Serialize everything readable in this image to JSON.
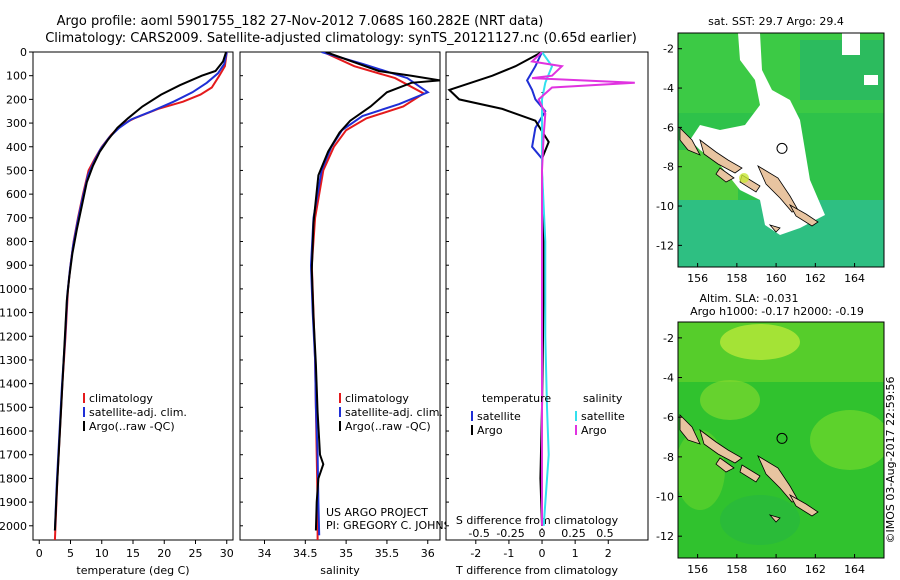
{
  "header": {
    "title_line1": "Argo profile: aoml 5901755_182 27-Nov-2012 7.068S 160.282E (NRT data)",
    "title_line2": "Climatology: CARS2009. Satellite-adjusted climatology: synTS_20121127.nc (0.65d earlier)"
  },
  "colors": {
    "climatology": "#e41a1c",
    "satellite": "#1f2fd6",
    "argo": "#000000",
    "satellite_salinity": "#33e0ee",
    "argo_salinity": "#e033e0"
  },
  "chart_data": [
    {
      "id": "temperature",
      "type": "line",
      "xlabel": "temperature (deg C)",
      "ylabel": "",
      "xlim": [
        -1,
        31
      ],
      "ylim": [
        2060,
        0
      ],
      "xticks": [
        0,
        5,
        10,
        15,
        20,
        25,
        30
      ],
      "yticks": [
        0,
        100,
        200,
        300,
        400,
        500,
        600,
        700,
        800,
        900,
        1000,
        1100,
        1200,
        1300,
        1400,
        1500,
        1600,
        1700,
        1800,
        1900,
        2000
      ],
      "legend": [
        "climatology",
        "satellite-adj. clim.",
        "Argo(..raw -QC)"
      ],
      "series": [
        {
          "name": "climatology",
          "color_key": "climatology",
          "points": [
            [
              30,
              0
            ],
            [
              29.7,
              60
            ],
            [
              28.8,
              100
            ],
            [
              27.6,
              150
            ],
            [
              25.8,
              180
            ],
            [
              23,
              210
            ],
            [
              19,
              240
            ],
            [
              15.2,
              280
            ],
            [
              13,
              310
            ],
            [
              11.5,
              350
            ],
            [
              10,
              400
            ],
            [
              8.9,
              450
            ],
            [
              7.9,
              500
            ],
            [
              7,
              600
            ],
            [
              6.2,
              700
            ],
            [
              5.5,
              800
            ],
            [
              5,
              900
            ],
            [
              4.6,
              1000
            ],
            [
              4.2,
              1200
            ],
            [
              3.7,
              1400
            ],
            [
              3.3,
              1600
            ],
            [
              2.9,
              1800
            ],
            [
              2.6,
              2000
            ],
            [
              2.5,
              2060
            ]
          ]
        },
        {
          "name": "satellite-adj. clim.",
          "color_key": "satellite",
          "points": [
            [
              30,
              0
            ],
            [
              29.6,
              50
            ],
            [
              28.6,
              90
            ],
            [
              26.8,
              130
            ],
            [
              24.5,
              170
            ],
            [
              21.5,
              210
            ],
            [
              18,
              250
            ],
            [
              14.7,
              285
            ],
            [
              12.8,
              320
            ],
            [
              11.2,
              360
            ],
            [
              9.8,
              410
            ],
            [
              8.8,
              460
            ],
            [
              7.8,
              520
            ],
            [
              6.9,
              620
            ],
            [
              6.1,
              720
            ],
            [
              5.4,
              820
            ],
            [
              4.9,
              920
            ],
            [
              4.5,
              1020
            ],
            [
              4.1,
              1220
            ],
            [
              3.6,
              1420
            ],
            [
              3.2,
              1620
            ],
            [
              2.8,
              1820
            ],
            [
              2.5,
              2020
            ]
          ]
        },
        {
          "name": "Argo(..raw -QC)",
          "color_key": "argo",
          "points": [
            [
              29.9,
              0
            ],
            [
              29.4,
              40
            ],
            [
              28.2,
              80
            ],
            [
              26,
              100
            ],
            [
              22.5,
              140
            ],
            [
              19.5,
              180
            ],
            [
              16.5,
              230
            ],
            [
              14.2,
              280
            ],
            [
              12.5,
              320
            ],
            [
              11,
              370
            ],
            [
              9.7,
              420
            ],
            [
              8.6,
              480
            ],
            [
              7.6,
              550
            ],
            [
              6.8,
              650
            ],
            [
              6,
              750
            ],
            [
              5.3,
              850
            ],
            [
              4.8,
              950
            ],
            [
              4.4,
              1050
            ],
            [
              4,
              1250
            ],
            [
              3.6,
              1450
            ],
            [
              3.2,
              1650
            ],
            [
              2.8,
              1850
            ],
            [
              2.5,
              2020
            ]
          ]
        }
      ]
    },
    {
      "id": "salinity",
      "type": "line",
      "xlabel": "salinity",
      "xlim": [
        33.7,
        36.15
      ],
      "ylim": [
        2060,
        0
      ],
      "xticks": [
        34,
        34.5,
        35,
        35.5,
        36
      ],
      "legend": [
        "climatology",
        "satellite-adj. clim.",
        "Argo(..raw -QC)"
      ],
      "annotation": [
        "US ARGO PROJECT",
        "PI: GREGORY C. JOHNSON"
      ],
      "series": [
        {
          "name": "climatology",
          "color_key": "climatology",
          "points": [
            [
              34.72,
              0
            ],
            [
              35.1,
              60
            ],
            [
              35.6,
              110
            ],
            [
              35.95,
              175
            ],
            [
              35.7,
              230
            ],
            [
              35.25,
              280
            ],
            [
              35,
              330
            ],
            [
              34.85,
              400
            ],
            [
              34.72,
              500
            ],
            [
              34.62,
              700
            ],
            [
              34.58,
              900
            ],
            [
              34.6,
              1100
            ],
            [
              34.62,
              1300
            ],
            [
              34.63,
              1500
            ],
            [
              34.64,
              1700
            ],
            [
              34.65,
              1900
            ],
            [
              34.65,
              2060
            ]
          ]
        },
        {
          "name": "satellite-adj. clim.",
          "color_key": "satellite",
          "points": [
            [
              34.7,
              0
            ],
            [
              35.2,
              50
            ],
            [
              35.75,
              110
            ],
            [
              36,
              170
            ],
            [
              35.65,
              220
            ],
            [
              35.2,
              270
            ],
            [
              34.95,
              330
            ],
            [
              34.82,
              400
            ],
            [
              34.7,
              500
            ],
            [
              34.6,
              700
            ],
            [
              34.57,
              900
            ],
            [
              34.59,
              1100
            ],
            [
              34.62,
              1300
            ],
            [
              34.63,
              1500
            ],
            [
              34.65,
              1700
            ],
            [
              34.66,
              1900
            ],
            [
              34.67,
              2040
            ]
          ]
        },
        {
          "name": "Argo(..raw -QC)",
          "color_key": "argo",
          "points": [
            [
              34.75,
              0
            ],
            [
              35.4,
              80
            ],
            [
              35.8,
              100
            ],
            [
              36.15,
              120
            ],
            [
              35.8,
              130
            ],
            [
              35.5,
              170
            ],
            [
              35.3,
              230
            ],
            [
              35.05,
              290
            ],
            [
              34.92,
              340
            ],
            [
              34.78,
              420
            ],
            [
              34.66,
              520
            ],
            [
              34.6,
              720
            ],
            [
              34.58,
              920
            ],
            [
              34.6,
              1120
            ],
            [
              34.63,
              1320
            ],
            [
              34.65,
              1520
            ],
            [
              34.68,
              1700
            ],
            [
              34.72,
              1740
            ],
            [
              34.66,
              1800
            ],
            [
              34.64,
              1900
            ],
            [
              34.63,
              2020
            ]
          ]
        }
      ]
    },
    {
      "id": "difference",
      "type": "line",
      "xlabel": "T difference from climatology",
      "xlabel_top": "S difference from climatology",
      "xlim": [
        -2.9,
        3.2
      ],
      "ylim": [
        2060,
        0
      ],
      "xticks_T": [
        -2,
        -1,
        0,
        1,
        2
      ],
      "xticks_S": [
        "-0.5",
        "-0.25",
        "0",
        "0.25",
        "0.5"
      ],
      "xticks_S_pos": [
        -1.9,
        -0.95,
        0,
        0.95,
        1.9
      ],
      "legend_left_title": "temperature",
      "legend_right_title": "salinity",
      "legend": [
        "satellite",
        "Argo",
        "satellite",
        "Argo"
      ],
      "series": [
        {
          "name": "T satellite",
          "color_key": "satellite",
          "points": [
            [
              0,
              0
            ],
            [
              -0.2,
              60
            ],
            [
              -0.45,
              120
            ],
            [
              -0.3,
              160
            ],
            [
              -0.2,
              200
            ],
            [
              0.1,
              250
            ],
            [
              -0.2,
              320
            ],
            [
              -0.3,
              400
            ],
            [
              0,
              450
            ],
            [
              0,
              2000
            ]
          ]
        },
        {
          "name": "T Argo",
          "color_key": "argo",
          "points": [
            [
              0,
              0
            ],
            [
              -0.8,
              60
            ],
            [
              -1.5,
              100
            ],
            [
              -2.8,
              160
            ],
            [
              -2.5,
              200
            ],
            [
              -1.2,
              240
            ],
            [
              -0.2,
              290
            ],
            [
              0.2,
              380
            ],
            [
              0,
              450
            ],
            [
              0,
              520
            ],
            [
              0.05,
              700
            ],
            [
              0.05,
              1000
            ],
            [
              0,
              1500
            ],
            [
              -0.05,
              1800
            ],
            [
              0,
              2000
            ]
          ]
        },
        {
          "name": "S satellite",
          "color_key": "satellite_salinity",
          "points": [
            [
              0,
              0
            ],
            [
              0.3,
              60
            ],
            [
              0.1,
              130
            ],
            [
              0,
              200
            ],
            [
              0,
              500
            ],
            [
              0.1,
              800
            ],
            [
              0.1,
              1200
            ],
            [
              0.15,
              1500
            ],
            [
              0.2,
              1700
            ],
            [
              0.05,
              2000
            ]
          ]
        },
        {
          "name": "S Argo",
          "color_key": "argo_salinity",
          "points": [
            [
              0,
              0
            ],
            [
              -0.3,
              40
            ],
            [
              0.6,
              60
            ],
            [
              0.3,
              100
            ],
            [
              -0.3,
              110
            ],
            [
              2.8,
              130
            ],
            [
              0.3,
              150
            ],
            [
              -0.1,
              200
            ],
            [
              0.1,
              260
            ],
            [
              0.05,
              350
            ],
            [
              0,
              500
            ],
            [
              0,
              2000
            ]
          ]
        }
      ]
    }
  ],
  "maps": [
    {
      "id": "sst-map",
      "title": "sat. SST: 29.7 Argo: 29.4",
      "xticks": [
        156,
        158,
        160,
        162,
        164
      ],
      "yticks": [
        -2,
        -4,
        -6,
        -8,
        -10,
        -12
      ],
      "xlim": [
        155,
        165.5
      ],
      "ylim": [
        -13.1,
        -1.2
      ],
      "marker": [
        160.3,
        -7.07
      ]
    },
    {
      "id": "sla-map",
      "title_line1": "Altim. SLA: -0.031",
      "title_line2": "Argo h1000: -0.17 h2000: -0.19",
      "xticks": [
        156,
        158,
        160,
        162,
        164
      ],
      "yticks": [
        -2,
        -4,
        -6,
        -8,
        -10,
        -12
      ],
      "xlim": [
        155,
        165.5
      ],
      "ylim": [
        -13.1,
        -1.2
      ],
      "marker": [
        160.3,
        -7.07
      ]
    }
  ],
  "side_text": "©IMOS 03-Aug-2017 22:59:56"
}
